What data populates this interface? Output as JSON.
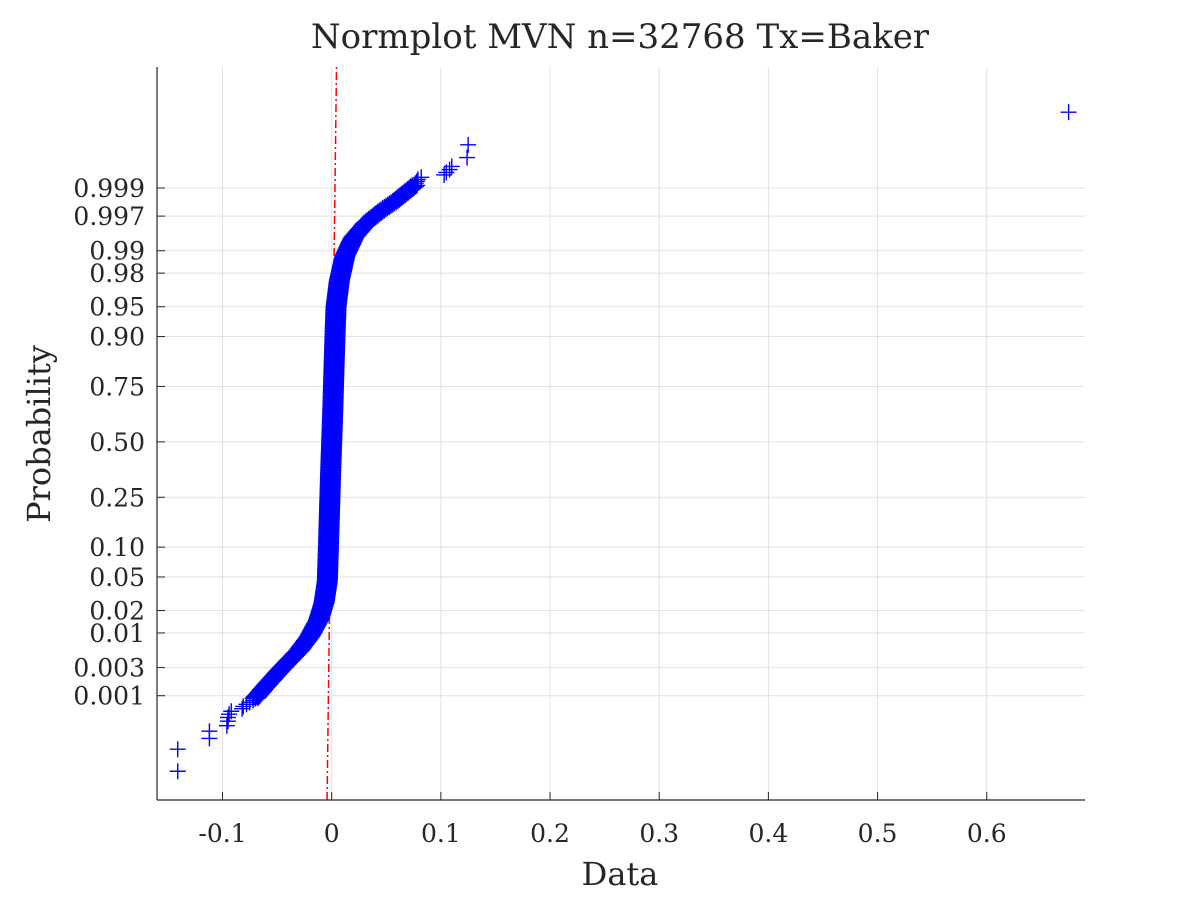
{
  "chart_data": {
    "type": "scatter",
    "title": "Normplot MVN n=32768 Tx=Baker",
    "xlabel": "Data",
    "ylabel": "Probability",
    "xlim": [
      -0.16,
      0.69
    ],
    "x_ticks": [
      -0.1,
      0,
      0.1,
      0.2,
      0.3,
      0.4,
      0.5,
      0.6
    ],
    "x_tick_labels": [
      "-0.1",
      "0",
      "0.1",
      "0.2",
      "0.3",
      "0.4",
      "0.5",
      "0.6"
    ],
    "y_scale": "normal-probability",
    "y_ticks": [
      0.001,
      0.003,
      0.01,
      0.02,
      0.05,
      0.1,
      0.25,
      0.5,
      0.75,
      0.9,
      0.95,
      0.98,
      0.99,
      0.997,
      0.999
    ],
    "y_tick_labels": [
      "0.001",
      "0.003",
      "0.01",
      "0.02",
      "0.05",
      "0.10",
      "0.25",
      "0.50",
      "0.75",
      "0.90",
      "0.95",
      "0.98",
      "0.99",
      "0.997",
      "0.999"
    ],
    "grid": true,
    "reference_line": {
      "style": "dash-dot",
      "color": "#ff0000",
      "x_at_p_001": -0.003,
      "x_at_p_999": 0.003
    },
    "series": [
      {
        "marker": "+",
        "color": "#0000ff",
        "outliers": [
          {
            "x": -0.141,
            "p": 3.04e-05
          },
          {
            "x": -0.141,
            "p": 9.15e-05
          },
          {
            "x": -0.112,
            "p": 0.000153
          },
          {
            "x": -0.112,
            "p": 0.000214
          },
          {
            "x": -0.096,
            "p": 0.000275
          },
          {
            "x": -0.095,
            "p": 0.000336
          },
          {
            "x": -0.095,
            "p": 0.000397
          },
          {
            "x": -0.094,
            "p": 0.000458
          },
          {
            "x": -0.092,
            "p": 0.00052
          },
          {
            "x": -0.082,
            "p": 0.00058
          },
          {
            "x": -0.081,
            "p": 0.00064
          },
          {
            "x": -0.078,
            "p": 0.0007
          },
          {
            "x": -0.075,
            "p": 0.00076
          },
          {
            "x": -0.072,
            "p": 0.00082
          },
          {
            "x": -0.07,
            "p": 0.00089
          },
          {
            "x": 0.076,
            "p": 0.99911
          },
          {
            "x": 0.077,
            "p": 0.99918
          },
          {
            "x": 0.078,
            "p": 0.99924
          },
          {
            "x": 0.079,
            "p": 0.9993
          },
          {
            "x": 0.082,
            "p": 0.99936
          },
          {
            "x": 0.103,
            "p": 0.99942
          },
          {
            "x": 0.105,
            "p": 0.99948
          },
          {
            "x": 0.108,
            "p": 0.99954
          },
          {
            "x": 0.11,
            "p": 0.9996
          },
          {
            "x": 0.124,
            "p": 0.99973
          },
          {
            "x": 0.125,
            "p": 0.99985
          },
          {
            "x": 0.675,
            "p": 0.99997
          }
        ],
        "curve": [
          {
            "x": -0.07,
            "p": 0.0009
          },
          {
            "x": -0.06,
            "p": 0.0015
          },
          {
            "x": -0.045,
            "p": 0.003
          },
          {
            "x": -0.03,
            "p": 0.0055
          },
          {
            "x": -0.02,
            "p": 0.009
          },
          {
            "x": -0.012,
            "p": 0.015
          },
          {
            "x": -0.007,
            "p": 0.025
          },
          {
            "x": -0.004,
            "p": 0.045
          },
          {
            "x": -0.003,
            "p": 0.1
          },
          {
            "x": -0.002,
            "p": 0.2
          },
          {
            "x": -0.001,
            "p": 0.35
          },
          {
            "x": 0.0,
            "p": 0.5
          },
          {
            "x": 0.001,
            "p": 0.65
          },
          {
            "x": 0.002,
            "p": 0.8
          },
          {
            "x": 0.003,
            "p": 0.9
          },
          {
            "x": 0.004,
            "p": 0.95
          },
          {
            "x": 0.007,
            "p": 0.975
          },
          {
            "x": 0.012,
            "p": 0.988
          },
          {
            "x": 0.02,
            "p": 0.9935
          },
          {
            "x": 0.032,
            "p": 0.9962
          },
          {
            "x": 0.045,
            "p": 0.9975
          },
          {
            "x": 0.058,
            "p": 0.9983
          },
          {
            "x": 0.068,
            "p": 0.9988
          },
          {
            "x": 0.076,
            "p": 0.9991
          }
        ]
      }
    ]
  }
}
